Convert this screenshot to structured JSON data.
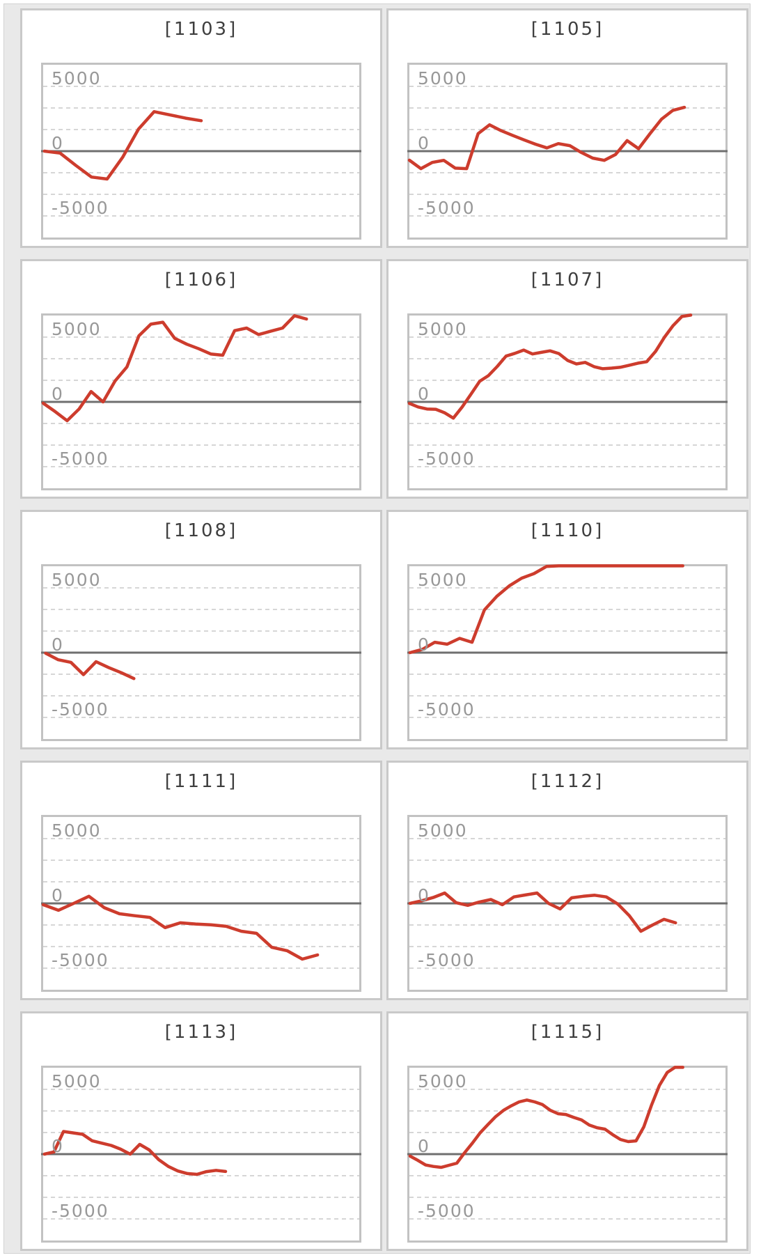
{
  "page": {
    "background": "#ffffff",
    "container_background": "#e9e9e9"
  },
  "colors": {
    "series_line": "#cd3c2d",
    "zero_line": "#6f6f6f",
    "gridline": "#d6d6d6",
    "plot_border": "#c2c2c2",
    "panel_border": "#c9c9c9",
    "panel_background": "#ffffff",
    "title_color": "#3e3e3e",
    "tick_label_color": "#989898"
  },
  "axis": {
    "tick_labels": {
      "top": "5000",
      "middle": "0",
      "bottom": "-5000"
    },
    "major_ticks": [
      5000,
      0,
      -5000
    ],
    "ylim": [
      -6667,
      6667
    ],
    "minor_gridlines": [
      5000,
      3333,
      1667,
      -1667,
      -3333,
      -5000
    ],
    "zero_baseline": 0,
    "gridline_style": "dashed",
    "vertical_gridlines": false
  },
  "chart_data": [
    {
      "type": "line",
      "title": "[1103]",
      "ylim": [
        -6667,
        6667
      ],
      "x_start": 0.004,
      "x_end": 0.5,
      "values": [
        0,
        -150,
        -1100,
        -2000,
        -2150,
        -450,
        1700,
        3050,
        2800,
        2550,
        2350
      ]
    },
    {
      "type": "line",
      "title": "[1105]",
      "ylim": [
        -6667,
        6667
      ],
      "x_start": 0.0,
      "x_end": 0.87,
      "values": [
        -700,
        -1350,
        -870,
        -710,
        -1310,
        -1350,
        1350,
        2030,
        1580,
        1220,
        870,
        540,
        250,
        580,
        425,
        -100,
        -540,
        -710,
        -250,
        810,
        190,
        1350,
        2470,
        3150,
        3380
      ]
    },
    {
      "type": "line",
      "title": "[1106]",
      "ylim": [
        -6667,
        6667
      ],
      "x_start": 0.0,
      "x_end": 0.833,
      "values": [
        -100,
        -750,
        -1450,
        -550,
        800,
        0,
        1600,
        2700,
        5100,
        6000,
        6150,
        4900,
        4450,
        4100,
        3700,
        3600,
        5500,
        5700,
        5200,
        5450,
        5700,
        6650,
        6400
      ]
    },
    {
      "type": "line",
      "title": "[1107]",
      "ylim": [
        -6667,
        6667
      ],
      "x_start": 0.0,
      "x_end": 0.89,
      "values": [
        -120,
        -390,
        -550,
        -570,
        -840,
        -1250,
        -390,
        590,
        1590,
        2030,
        2740,
        3540,
        3750,
        4000,
        3700,
        3820,
        3940,
        3730,
        3200,
        2930,
        3050,
        2720,
        2560,
        2610,
        2670,
        2830,
        2990,
        3100,
        3900,
        4980,
        5890,
        6590,
        6700
      ]
    },
    {
      "type": "line",
      "title": "[1108]",
      "ylim": [
        -6667,
        6667
      ],
      "x_start": 0.008,
      "x_end": 0.287,
      "values": [
        -50,
        -550,
        -750,
        -1700,
        -700,
        -1150,
        -1550,
        -2000
      ]
    },
    {
      "type": "line",
      "title": "[1110]",
      "ylim": [
        -6667,
        6667
      ],
      "x_start": 0.002,
      "x_end": 0.865,
      "values": [
        0,
        250,
        800,
        650,
        1100,
        800,
        3300,
        4350,
        5150,
        5750,
        6100,
        6650,
        6700,
        6700,
        6700,
        6700,
        6700,
        6700,
        6700,
        6700,
        6700,
        6700,
        6700
      ]
    },
    {
      "type": "line",
      "title": "[1111]",
      "ylim": [
        -6667,
        6667
      ],
      "x_start": 0.0,
      "x_end": 0.868,
      "values": [
        -100,
        -530,
        0,
        550,
        -330,
        -800,
        -950,
        -1080,
        -1870,
        -1500,
        -1590,
        -1650,
        -1770,
        -2150,
        -2310,
        -3390,
        -3650,
        -4300,
        -3980
      ]
    },
    {
      "type": "line",
      "title": "[1112]",
      "ylim": [
        -6667,
        6667
      ],
      "x_start": 0.002,
      "x_end": 0.842,
      "values": [
        0,
        200,
        450,
        800,
        50,
        -150,
        100,
        300,
        -100,
        500,
        650,
        800,
        0,
        -430,
        430,
        550,
        630,
        500,
        -50,
        -950,
        -2150,
        -1670,
        -1230,
        -1500
      ]
    },
    {
      "type": "line",
      "title": "[1113]",
      "ylim": [
        -6667,
        6667
      ],
      "x_start": 0.004,
      "x_end": 0.577,
      "values": [
        0,
        170,
        1750,
        1640,
        1530,
        1030,
        850,
        670,
        380,
        0,
        750,
        320,
        -430,
        -950,
        -1300,
        -1500,
        -1560,
        -1350,
        -1250,
        -1340
      ]
    },
    {
      "type": "line",
      "title": "[1115]",
      "ylim": [
        -6667,
        6667
      ],
      "x_start": 0.002,
      "x_end": 0.865,
      "values": [
        -150,
        -480,
        -840,
        -950,
        -1020,
        -860,
        -700,
        110,
        850,
        1650,
        2290,
        2900,
        3380,
        3730,
        4030,
        4180,
        4030,
        3820,
        3380,
        3120,
        3060,
        2840,
        2640,
        2250,
        2040,
        1930,
        1500,
        1130,
        970,
        1020,
        2100,
        3800,
        5300,
        6300,
        6700,
        6700
      ]
    }
  ]
}
